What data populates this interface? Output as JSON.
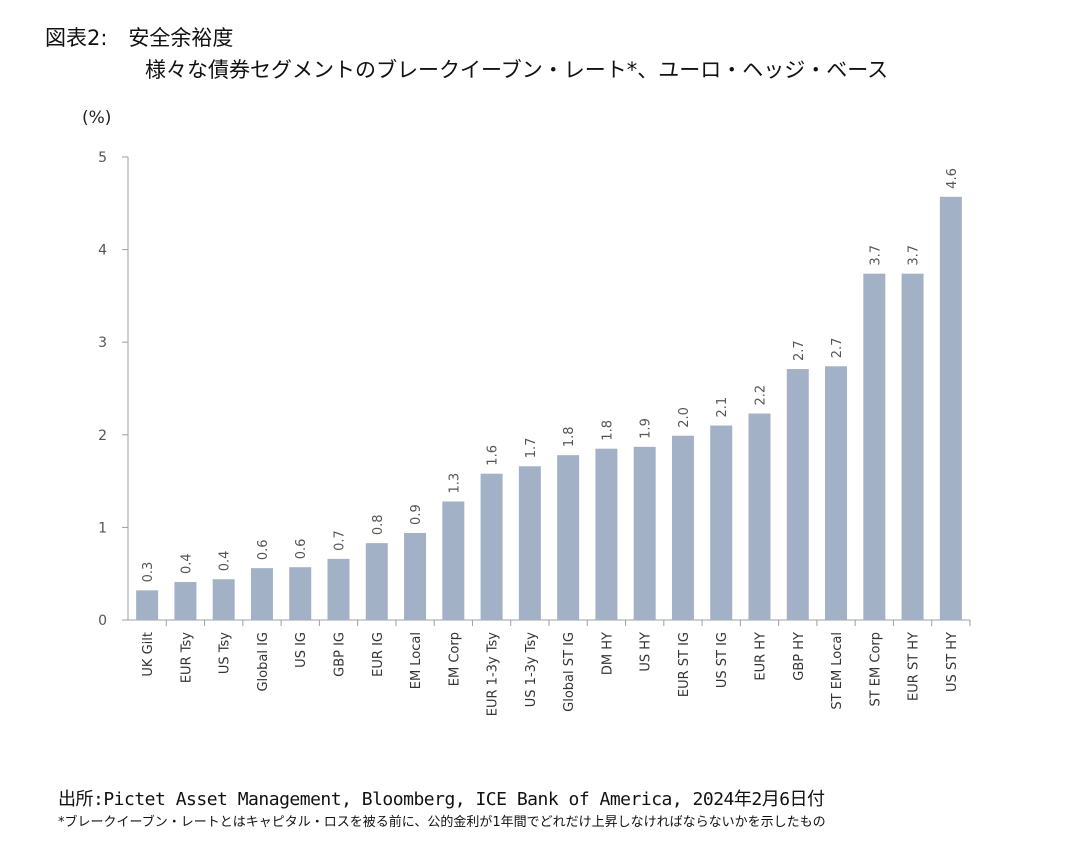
{
  "title": "図表2:　安全余裕度",
  "subtitle": "様々な債券セグメントのブレークイーブン・レート*、ユーロ・ヘッジ・ベース",
  "source": "出所:Pictet Asset Management, Bloomberg,  ICE Bank of America, 2024年2月6日付",
  "note": "*ブレークイーブン・レートとはキャピタル・ロスを被る前に、公的金利が1年間でどれだけ上昇しなければならないかを示したもの",
  "colors": {
    "bar": "#a2b1c5",
    "axis": "#9aa0a6",
    "text": "#555555"
  },
  "chart_data": {
    "type": "bar",
    "ylabel": "(%)",
    "ylim": [
      0,
      5
    ],
    "yticks": [
      0,
      1,
      2,
      3,
      4,
      5
    ],
    "grid": false,
    "categories": [
      "UK Gilt",
      "EUR Tsy",
      "US Tsy",
      "Global IG",
      "US IG",
      "GBP IG",
      "EUR IG",
      "EM Local",
      "EM Corp",
      "EUR 1-3y Tsy",
      "US 1-3y Tsy",
      "Global ST IG",
      "DM HY",
      "US HY",
      "EUR ST IG",
      "US ST IG",
      "EUR HY",
      "GBP HY",
      "ST EM Local",
      "ST EM Corp",
      "EUR ST HY",
      "US ST HY"
    ],
    "values": [
      0.32,
      0.41,
      0.44,
      0.56,
      0.57,
      0.66,
      0.83,
      0.94,
      1.28,
      1.58,
      1.66,
      1.78,
      1.85,
      1.87,
      1.99,
      2.1,
      2.23,
      2.71,
      2.74,
      3.74,
      3.74,
      4.57
    ],
    "labels": [
      "0.3",
      "0.4",
      "0.4",
      "0.6",
      "0.6",
      "0.7",
      "0.8",
      "0.9",
      "1.3",
      "1.6",
      "1.7",
      "1.8",
      "1.8",
      "1.9",
      "2.0",
      "2.1",
      "2.2",
      "2.7",
      "2.7",
      "3.7",
      "3.7",
      "4.6"
    ]
  }
}
